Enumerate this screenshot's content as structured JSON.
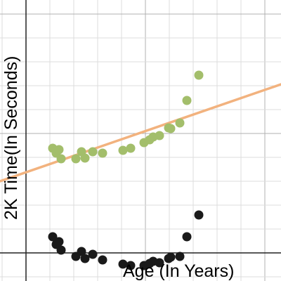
{
  "chart_data": {
    "type": "scatter",
    "title": "",
    "xlabel": "Age (In Years)",
    "ylabel": "2K Time(In Seconds)",
    "grid": true,
    "tick_labels_visible": false,
    "series": [
      {
        "color": "#a3be6b",
        "points": [
          [
            75,
            211
          ],
          [
            80,
            218
          ],
          [
            84,
            213
          ],
          [
            87,
            226
          ],
          [
            108,
            226
          ],
          [
            116,
            216
          ],
          [
            121,
            225
          ],
          [
            132,
            216
          ],
          [
            146,
            218
          ],
          [
            175,
            214
          ],
          [
            186,
            211
          ],
          [
            205,
            203
          ],
          [
            213,
            199
          ],
          [
            218,
            195
          ],
          [
            227,
            193
          ],
          [
            240,
            182
          ],
          [
            243,
            183
          ],
          [
            256,
            175
          ],
          [
            266,
            143
          ],
          [
            283,
            107
          ]
        ]
      },
      {
        "color": "#1a1a1a",
        "points": [
          [
            75,
            337
          ],
          [
            80,
            348
          ],
          [
            84,
            344
          ],
          [
            87,
            356
          ],
          [
            108,
            365
          ],
          [
            116,
            358
          ],
          [
            121,
            368
          ],
          [
            132,
            362
          ],
          [
            146,
            370
          ],
          [
            175,
            376
          ],
          [
            186,
            378
          ],
          [
            205,
            378
          ],
          [
            213,
            375
          ],
          [
            218,
            372
          ],
          [
            227,
            374
          ],
          [
            240,
            368
          ],
          [
            243,
            366
          ],
          [
            256,
            365
          ],
          [
            266,
            337
          ],
          [
            283,
            306
          ]
        ]
      }
    ],
    "trendline": {
      "color": "#f2b27e",
      "points": [
        [
          0,
          258
        ],
        [
          400,
          120
        ]
      ]
    }
  }
}
